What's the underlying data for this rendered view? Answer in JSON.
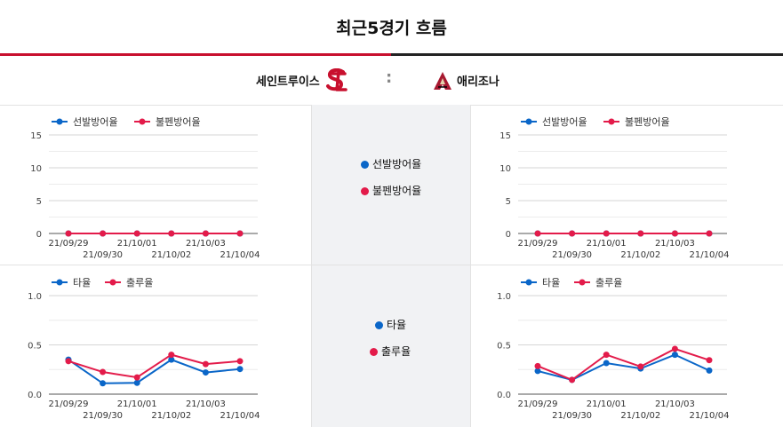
{
  "header": {
    "title": "최근5경기 흐름"
  },
  "teams": {
    "home": {
      "name": "세인트루이스",
      "logo": "cardinals-stl-logo"
    },
    "separator": ":",
    "away": {
      "name": "애리조나",
      "logo": "diamondbacks-a-logo"
    }
  },
  "colors": {
    "series1": "#0a66c8",
    "series2": "#e31b4a",
    "accent": "#c8102e"
  },
  "center_legend_top": [
    "선발방어율",
    "불펜방어율"
  ],
  "center_legend_bottom": [
    "타율",
    "출루율"
  ],
  "chart_data": [
    {
      "type": "line",
      "team": "세인트루이스",
      "x": [
        "21/09/29",
        "21/09/30",
        "21/10/01",
        "21/10/02",
        "21/10/03",
        "21/10/04"
      ],
      "ylim": [
        0,
        15
      ],
      "yticks": [
        0,
        5,
        10,
        15
      ],
      "grid": true,
      "legend": "top-left",
      "series": [
        {
          "name": "선발방어율",
          "values": [
            0,
            0,
            0,
            0,
            0,
            0
          ]
        },
        {
          "name": "불펜방어율",
          "values": [
            0,
            0,
            0,
            0,
            0,
            0
          ]
        }
      ]
    },
    {
      "type": "line",
      "team": "애리조나",
      "x": [
        "21/09/29",
        "21/09/30",
        "21/10/01",
        "21/10/02",
        "21/10/03",
        "21/10/04"
      ],
      "ylim": [
        0,
        15
      ],
      "yticks": [
        0,
        5,
        10,
        15
      ],
      "grid": true,
      "legend": "top-left",
      "series": [
        {
          "name": "선발방어율",
          "values": [
            0,
            0,
            0,
            0,
            0,
            0
          ]
        },
        {
          "name": "불펜방어율",
          "values": [
            0,
            0,
            0,
            0,
            0,
            0
          ]
        }
      ]
    },
    {
      "type": "line",
      "team": "세인트루이스",
      "x": [
        "21/09/29",
        "21/09/30",
        "21/10/01",
        "21/10/02",
        "21/10/03",
        "21/10/04"
      ],
      "ylim": [
        0,
        1.0
      ],
      "yticks": [
        0.0,
        0.5,
        1.0
      ],
      "grid": true,
      "legend": "top-left",
      "series": [
        {
          "name": "타율",
          "values": [
            0.35,
            0.11,
            0.115,
            0.35,
            0.22,
            0.255
          ]
        },
        {
          "name": "출루율",
          "values": [
            0.335,
            0.225,
            0.17,
            0.4,
            0.305,
            0.335
          ]
        }
      ]
    },
    {
      "type": "line",
      "team": "애리조나",
      "x": [
        "21/09/29",
        "21/09/30",
        "21/10/01",
        "21/10/02",
        "21/10/03",
        "21/10/04"
      ],
      "ylim": [
        0,
        1.0
      ],
      "yticks": [
        0.0,
        0.5,
        1.0
      ],
      "grid": true,
      "legend": "top-left",
      "series": [
        {
          "name": "타율",
          "values": [
            0.235,
            0.145,
            0.315,
            0.26,
            0.4,
            0.24
          ]
        },
        {
          "name": "출루율",
          "values": [
            0.285,
            0.145,
            0.4,
            0.28,
            0.46,
            0.345
          ]
        }
      ]
    }
  ]
}
